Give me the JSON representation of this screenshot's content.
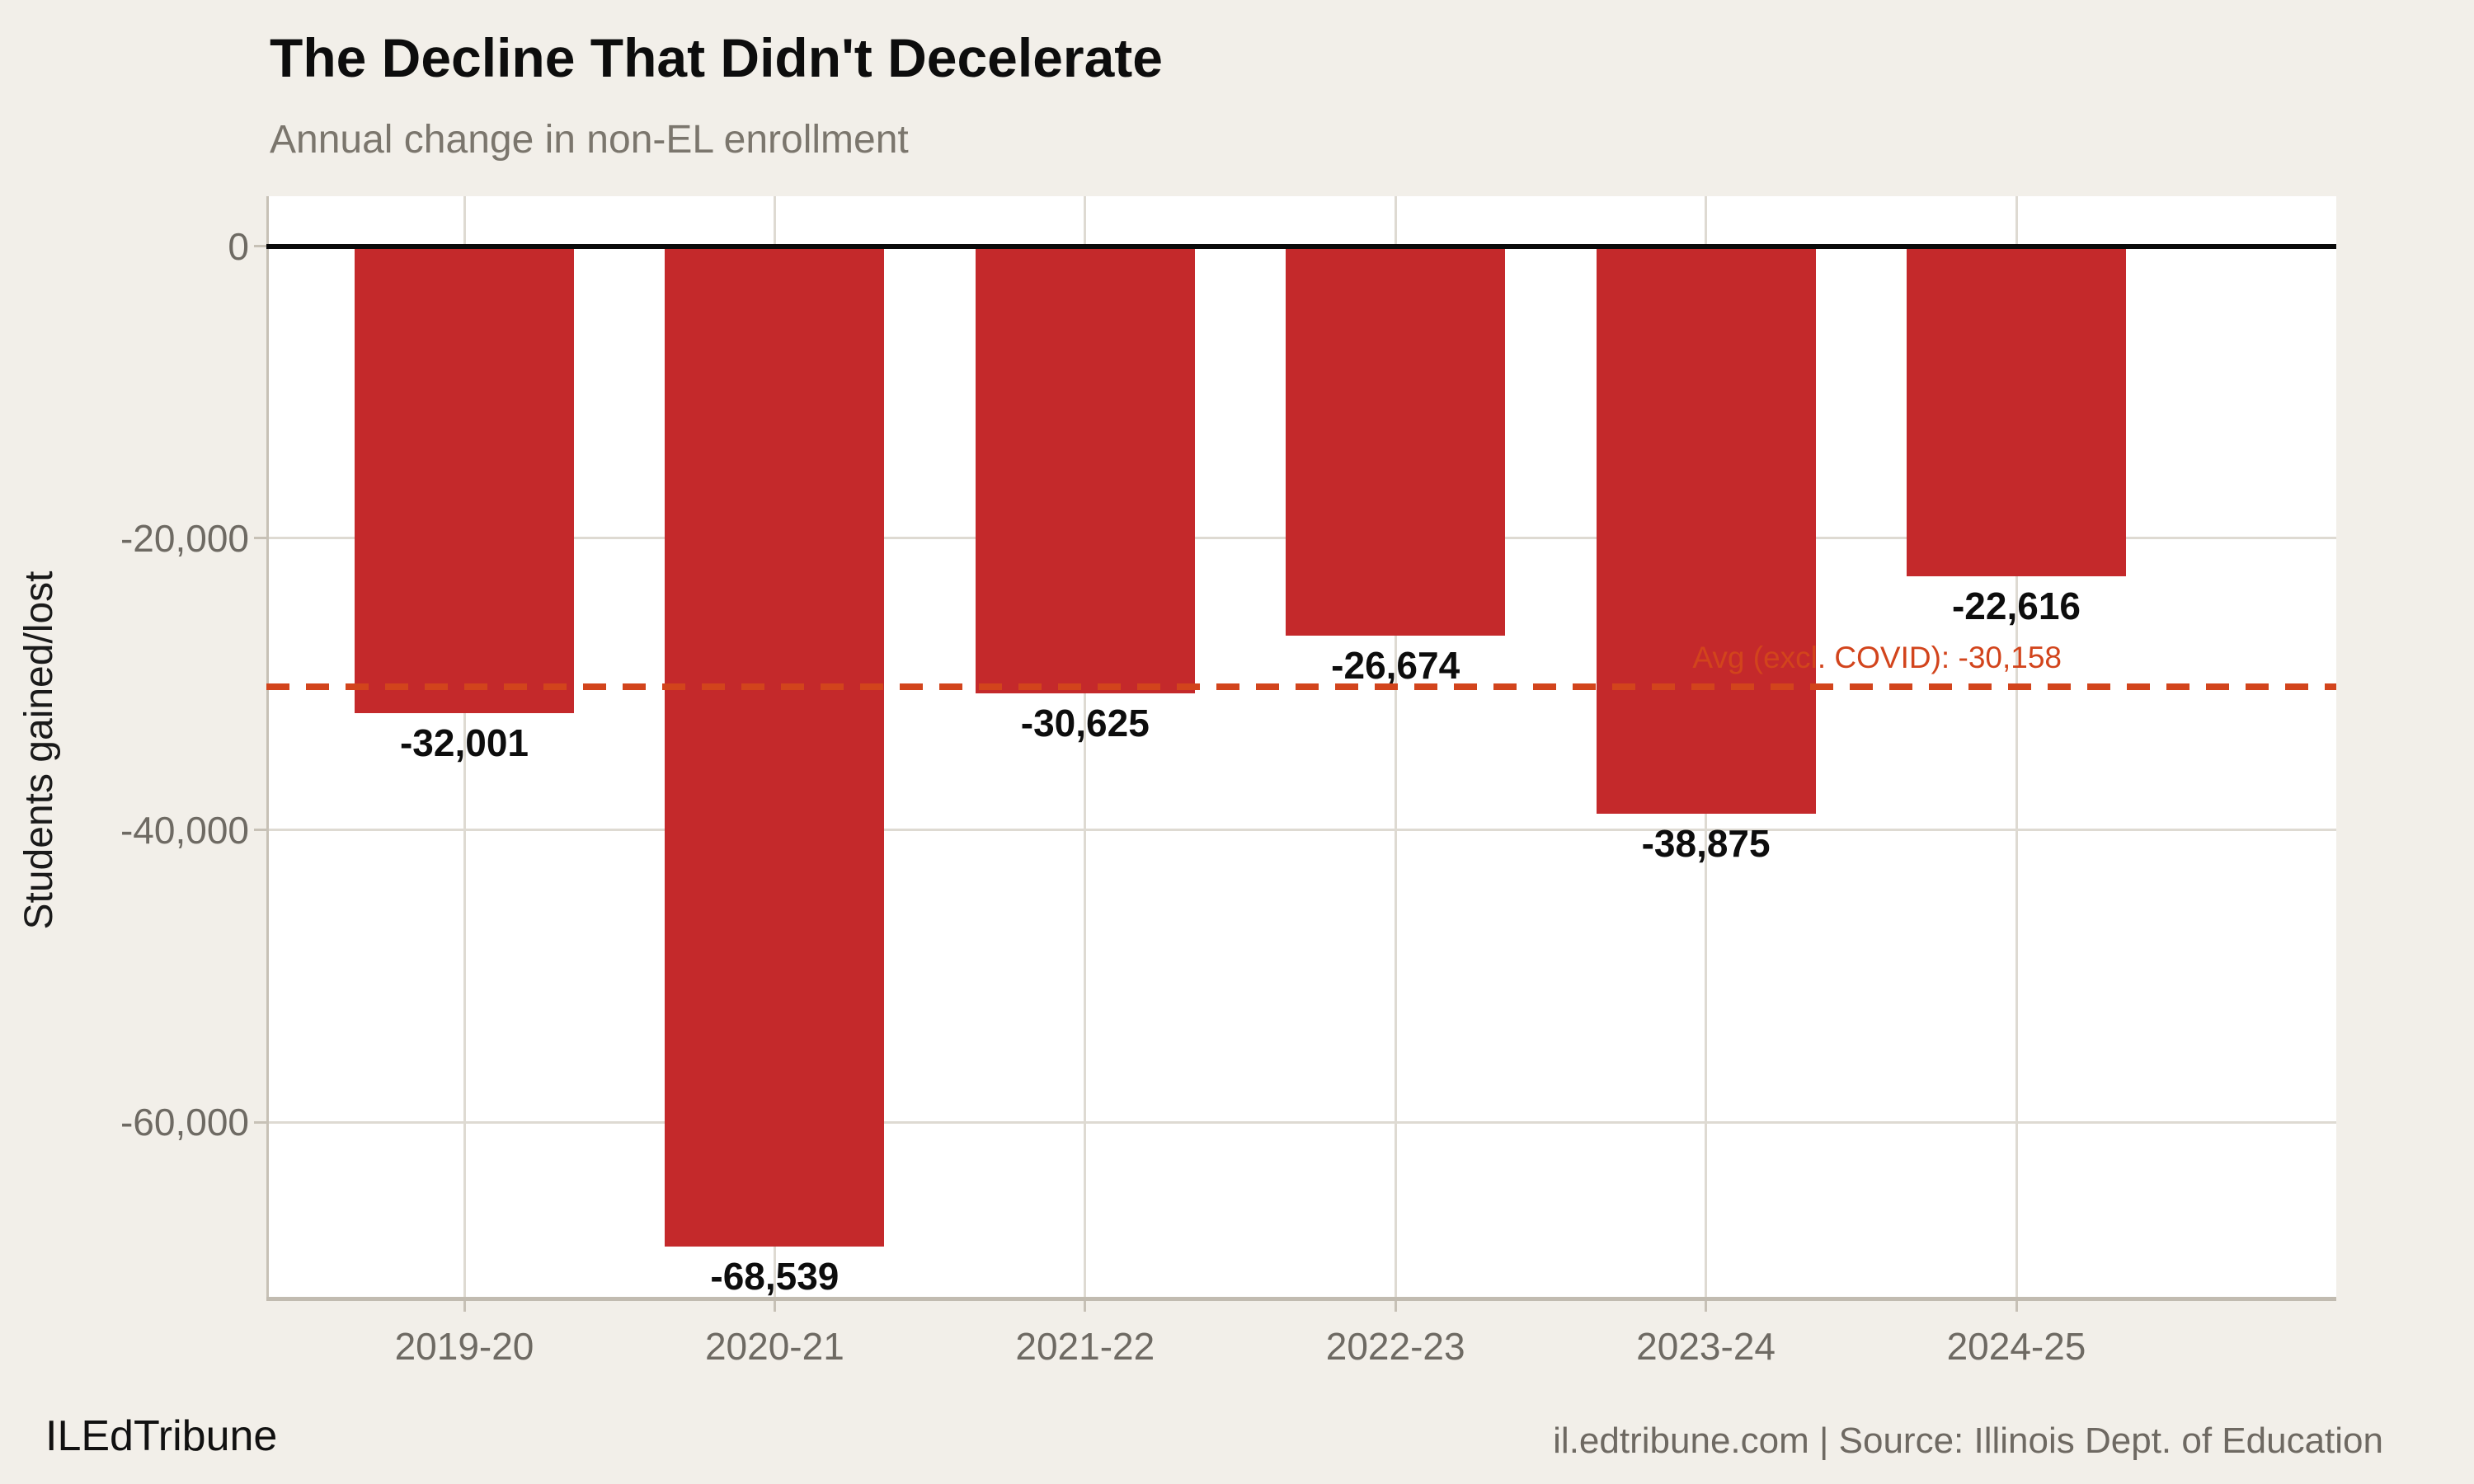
{
  "title": "The Decline That Didn't Decelerate",
  "subtitle": "Annual change in non-EL enrollment",
  "footer": {
    "left": "ILEdTribune",
    "right": "il.edtribune.com | Source: Illinois Dept. of Education"
  },
  "colors": {
    "background": "#f2efe9",
    "plot_background": "#ffffff",
    "bar": "#c4292b",
    "avg_line": "#d2441c",
    "grid": "#dedad2",
    "axis": "#c7c1b6",
    "axis_bottom": "#c1bbb0",
    "zero_line": "#0a0a0a",
    "tick_label": "#6e6a63",
    "value_label": "#0d0d0d"
  },
  "chart_data": {
    "type": "bar",
    "title": "The Decline That Didn't Decelerate",
    "subtitle": "Annual change in non-EL enrollment",
    "categories": [
      "2019-20",
      "2020-21",
      "2021-22",
      "2022-23",
      "2023-24",
      "2024-25"
    ],
    "values": [
      -32001,
      -68539,
      -30625,
      -26674,
      -38875,
      -22616
    ],
    "value_labels": [
      "-32,001",
      "-68,539",
      "-30,625",
      "-26,674",
      "-38,875",
      "-22,616"
    ],
    "xlabel": "",
    "ylabel": "Students gained/lost",
    "ylim": [
      -71966,
      3427
    ],
    "yticks": [
      0,
      -20000,
      -40000,
      -60000
    ],
    "ytick_labels": [
      "0",
      "-20,000",
      "-40,000",
      "-60,000"
    ],
    "grid": true,
    "legend": false,
    "bar_orientation": "vertical",
    "reference_line": {
      "value": -30158,
      "label": "Avg (excl. COVID): -30,158"
    }
  }
}
